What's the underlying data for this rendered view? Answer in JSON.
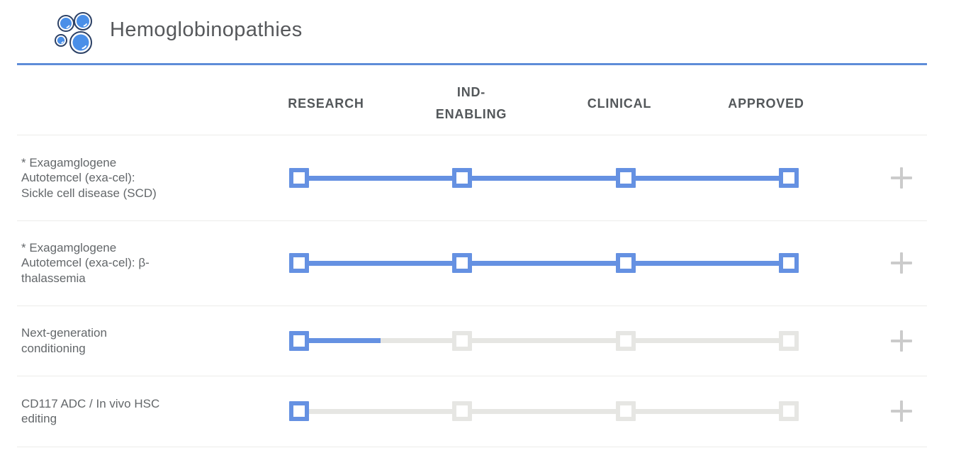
{
  "header": {
    "title": "Hemoglobinopathies",
    "icon": "blood-cells-icon"
  },
  "columns": [
    "RESEARCH",
    "IND-ENABLING",
    "CLINICAL",
    "APPROVED"
  ],
  "rows": [
    {
      "label": "* Exagamglogene Autotemcel (exa-cel): Sickle cell disease (SCD)",
      "stages_active": [
        true,
        true,
        true,
        true
      ],
      "progress_pct": 100,
      "expand_icon": "+"
    },
    {
      "label": "* Exagamglogene Autotemcel (exa-cel): β-thalassemia",
      "stages_active": [
        true,
        true,
        true,
        true
      ],
      "progress_pct": 100,
      "expand_icon": "+"
    },
    {
      "label": "Next-generation conditioning",
      "stages_active": [
        true,
        false,
        false,
        false
      ],
      "progress_pct": 16.6,
      "expand_icon": "+"
    },
    {
      "label": "CD117 ADC / In vivo HSC editing",
      "stages_active": [
        true,
        false,
        false,
        false
      ],
      "progress_pct": 0,
      "expand_icon": "+"
    }
  ],
  "colors": {
    "active_blue": "#6591E2",
    "inactive_gray": "#E6E6E3",
    "header_rule_blue": "#5E8DD8",
    "plus_gray": "#CBCBCB",
    "icon_blue": "#4A8FE8",
    "icon_outline_navy": "#2C4166"
  }
}
